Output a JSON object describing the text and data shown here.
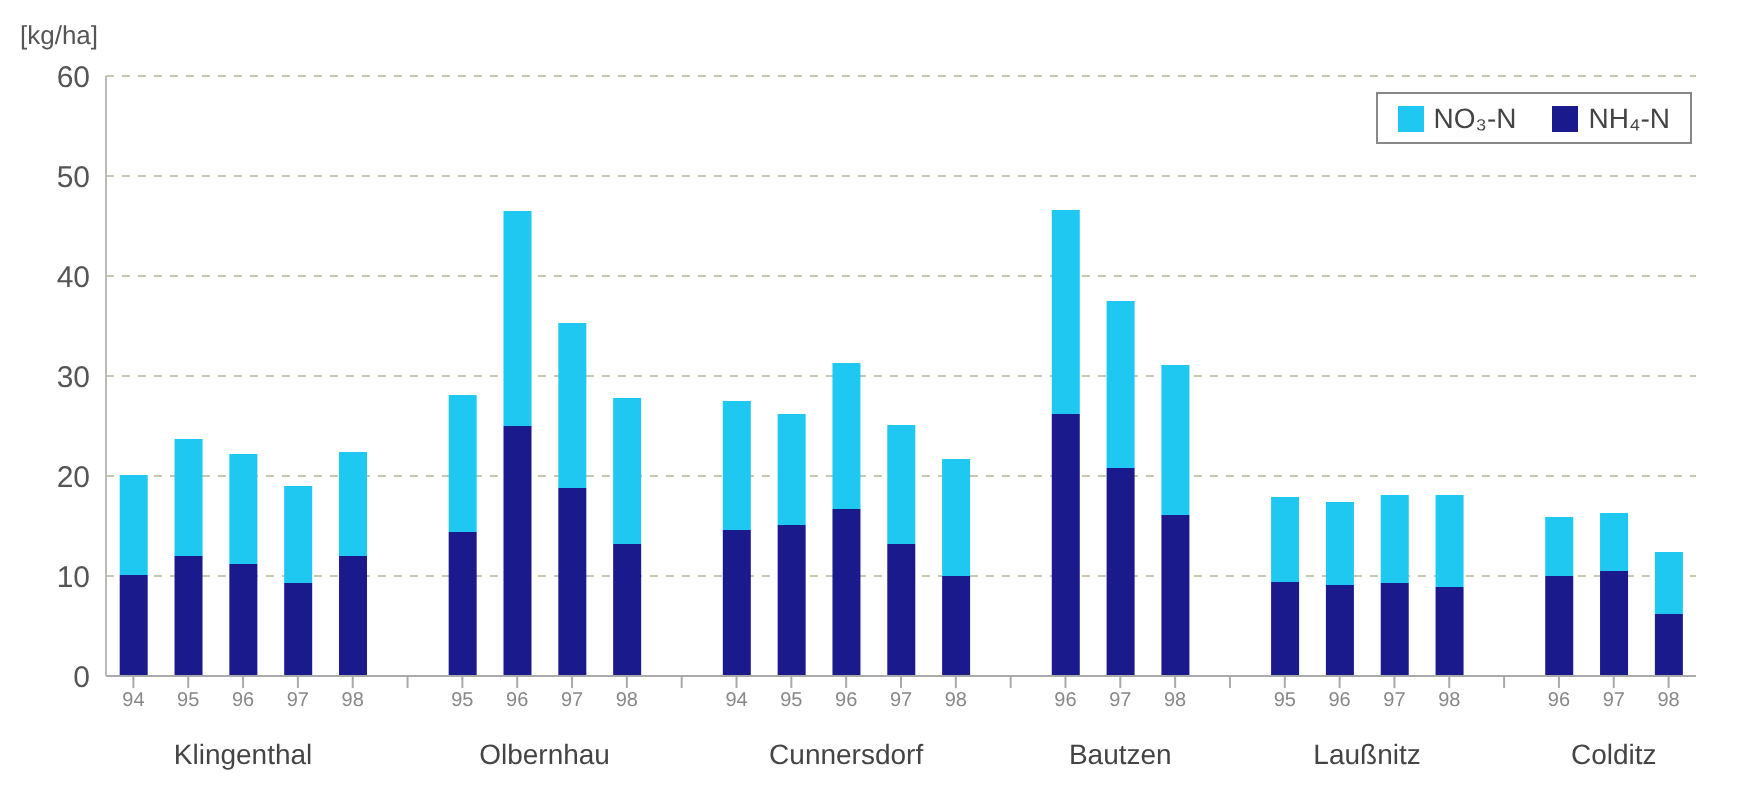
{
  "chart_data": {
    "type": "bar",
    "stacked": true,
    "ylabel": "[kg/ha]",
    "categories": [
      "94",
      "95",
      "96",
      "97",
      "98",
      null,
      "95",
      "96",
      "97",
      "98",
      null,
      "94",
      "95",
      "96",
      "97",
      "98",
      null,
      "96",
      "97",
      "98",
      null,
      "95",
      "96",
      "97",
      "98",
      null,
      "96",
      "97",
      "98"
    ],
    "series": [
      {
        "name": "NH₄-N",
        "color": "#1a1a8c",
        "values": [
          10.1,
          12.0,
          11.2,
          9.3,
          12.0,
          null,
          14.4,
          25.0,
          18.8,
          13.2,
          null,
          14.6,
          15.1,
          16.7,
          13.2,
          10.0,
          null,
          26.2,
          20.8,
          16.1,
          null,
          9.4,
          9.1,
          9.3,
          8.9,
          null,
          10.0,
          10.5,
          6.2
        ]
      },
      {
        "name": "NO₃-N",
        "color": "#1ec8f0",
        "values": [
          10.0,
          11.7,
          11.0,
          9.7,
          10.4,
          null,
          13.7,
          21.5,
          16.5,
          14.6,
          null,
          12.9,
          11.1,
          14.6,
          11.9,
          11.7,
          null,
          20.4,
          16.7,
          15.0,
          null,
          8.5,
          8.3,
          8.8,
          9.2,
          null,
          5.9,
          5.8,
          6.2
        ]
      }
    ],
    "annotations": [
      "Klingenthal",
      "Olbernhau",
      "Cunnersdorf",
      "Bautzen",
      "Laußnitz",
      "Colditz"
    ],
    "ylim": [
      0,
      60
    ],
    "yticks": [
      0,
      10,
      20,
      30,
      40,
      50,
      60
    ],
    "grid": "y",
    "legend": "top right"
  }
}
